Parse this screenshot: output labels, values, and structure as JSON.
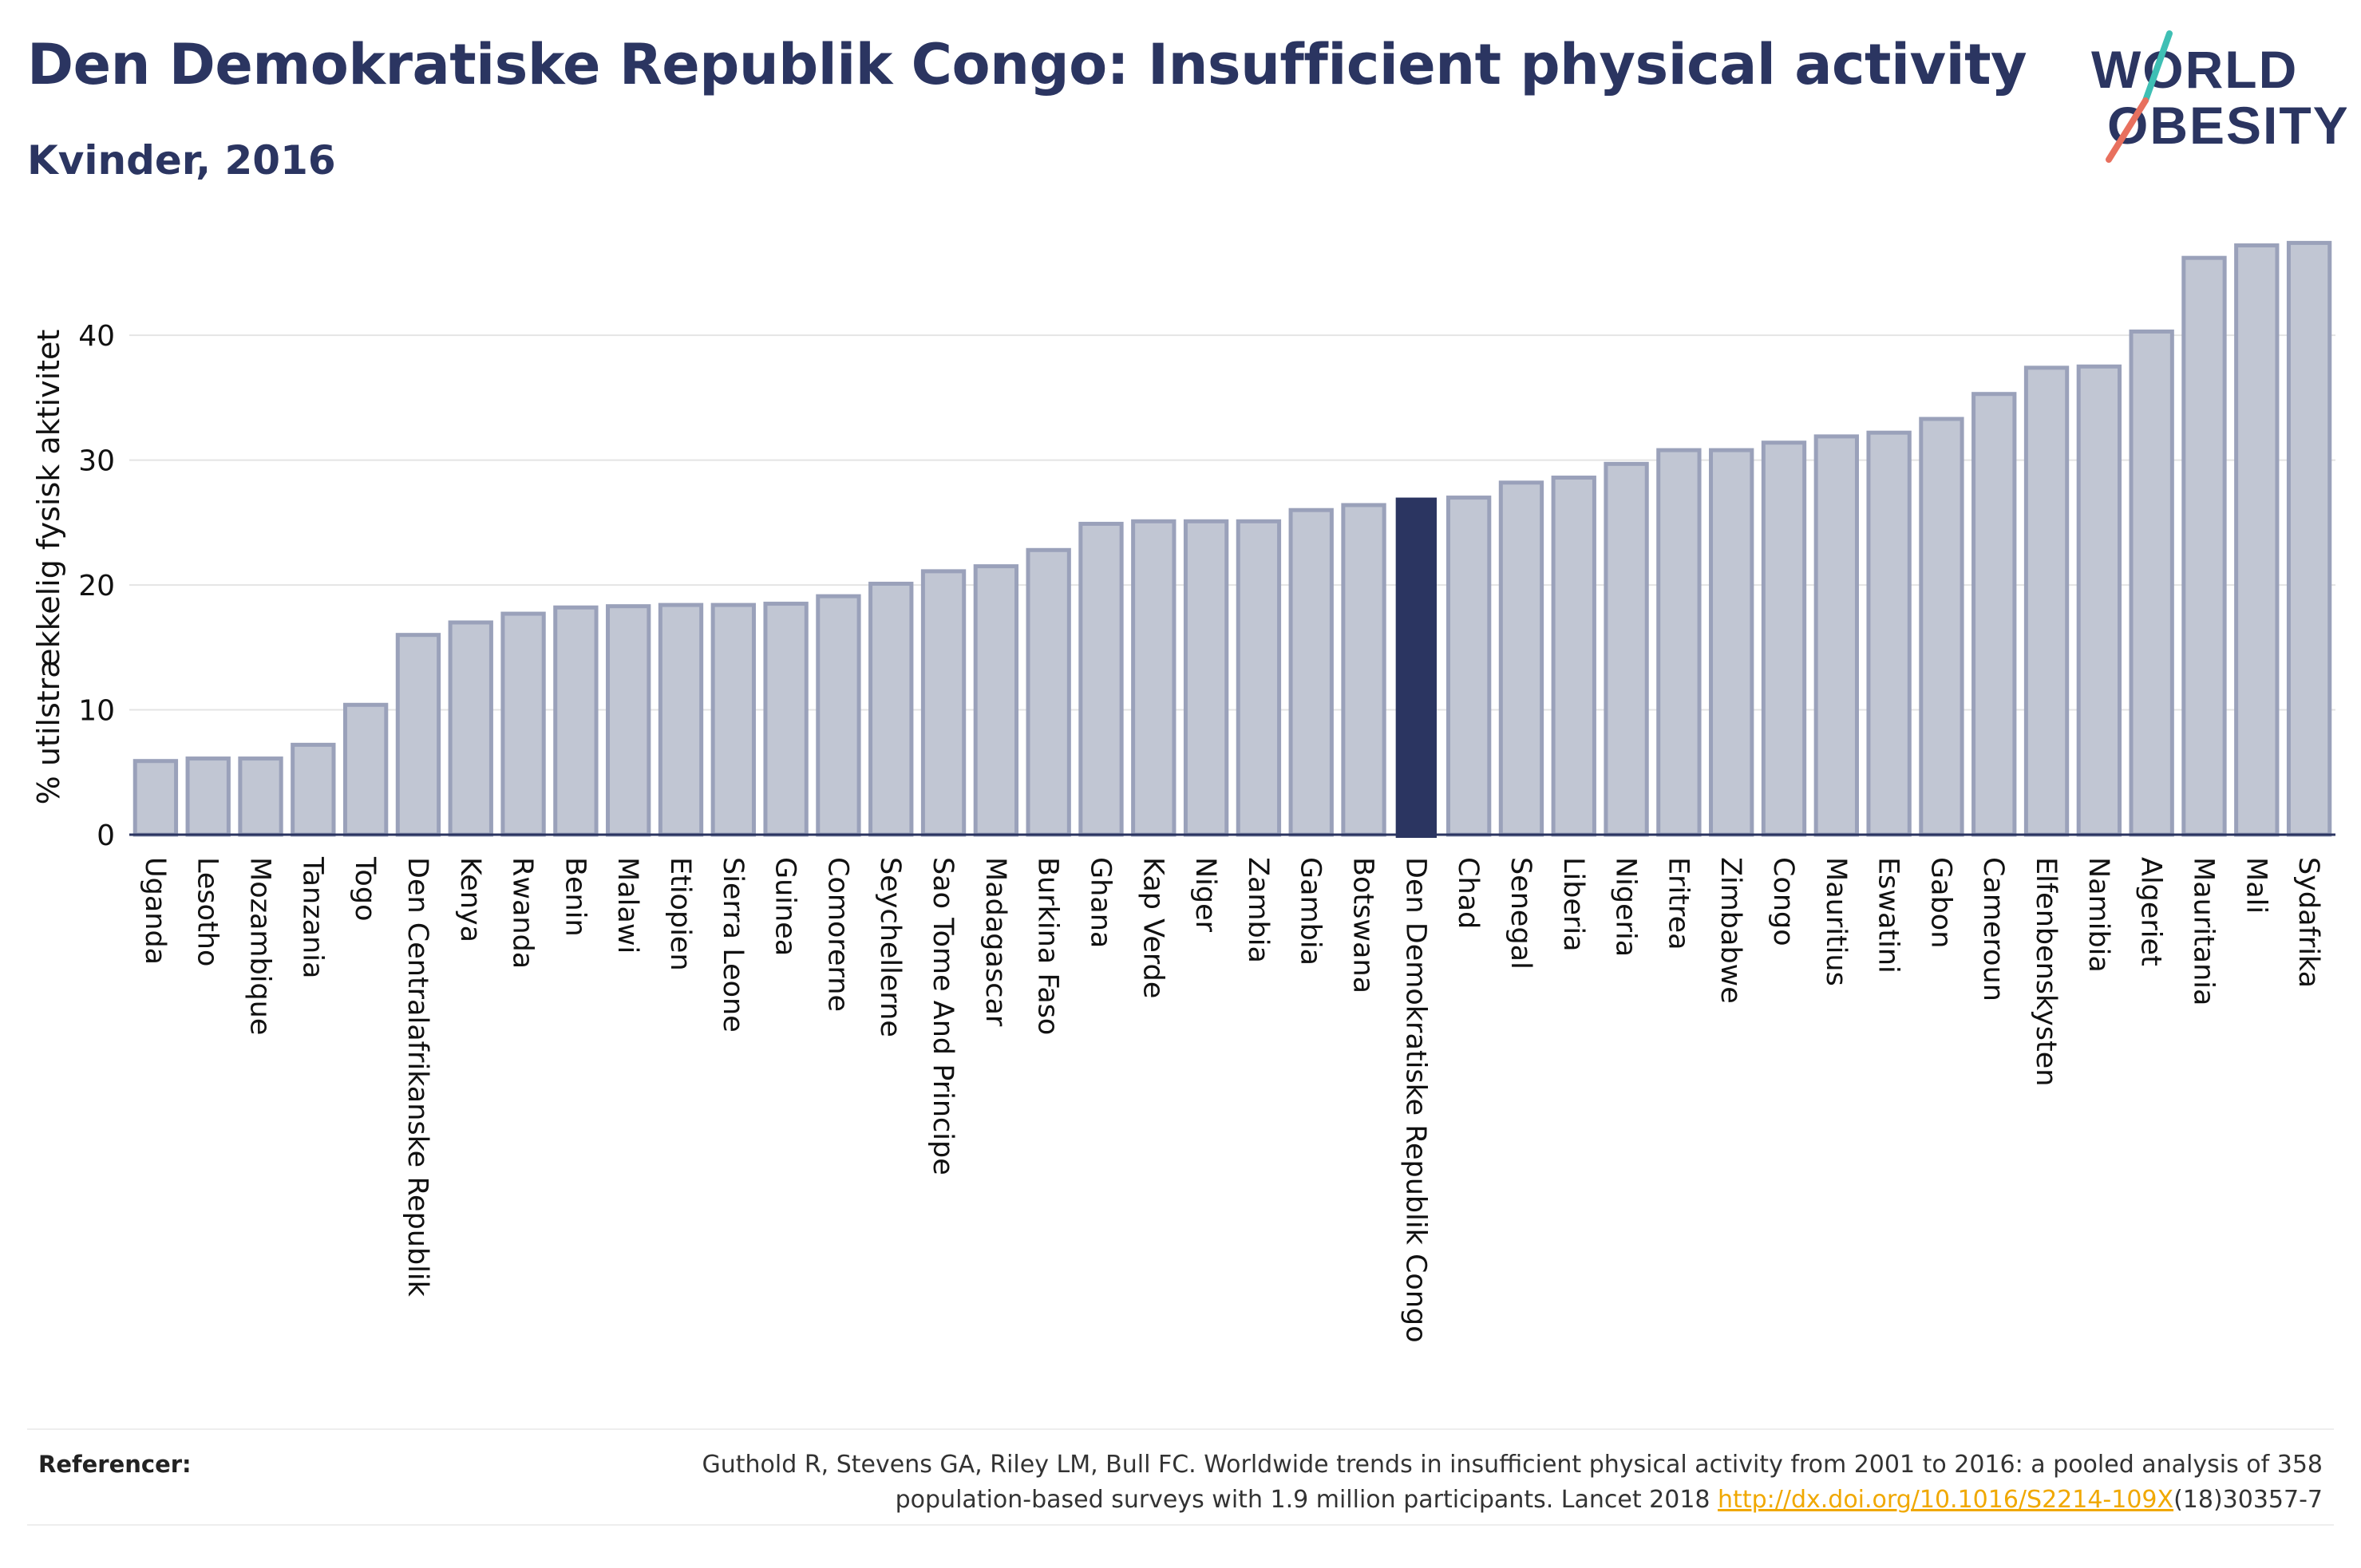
{
  "header": {
    "title": "Den Demokratiske Republik Congo: Insufficient physical activity",
    "subtitle": "Kvinder, 2016"
  },
  "logo": {
    "line1": "WORLD",
    "line2": "OBESITY"
  },
  "references": {
    "label": "Referencer:",
    "text_line1": "Guthold R, Stevens GA, Riley LM, Bull FC. Worldwide trends in insufficient physical activity from 2001 to 2016: a pooled analysis of 358",
    "text_line2_before": "population-based surveys with 1.9 million participants. Lancet 2018 ",
    "link_text": "http://dx.doi.org/10.1016/S2214-109X",
    "text_line2_after": "(18)30357-7"
  },
  "colors": {
    "bar": "#c1c6d3",
    "bar_border": "#9aa1ba",
    "highlight": "#2b3561",
    "axis_text": "#111111",
    "grid": "#e4e4e4",
    "link": "#f0a800"
  },
  "chart_data": {
    "type": "bar",
    "ylabel": "% utilstrækkelig fysisk aktivitet",
    "ylim": [
      0,
      48
    ],
    "yticks": [
      0,
      10,
      20,
      30,
      40
    ],
    "grid": true,
    "highlight": "Den Demokratiske Republik Congo",
    "categories": [
      "Uganda",
      "Lesotho",
      "Mozambique",
      "Tanzania",
      "Togo",
      "Den Centralafrikanske Republik",
      "Kenya",
      "Rwanda",
      "Benin",
      "Malawi",
      "Etiopien",
      "Sierra Leone",
      "Guinea",
      "Comorerne",
      "Seychellerne",
      "Sao Tome And Principe",
      "Madagascar",
      "Burkina Faso",
      "Ghana",
      "Kap Verde",
      "Niger",
      "Zambia",
      "Gambia",
      "Botswana",
      "Den Demokratiske Republik Congo",
      "Chad",
      "Senegal",
      "Liberia",
      "Nigeria",
      "Eritrea",
      "Zimbabwe",
      "Congo",
      "Mauritius",
      "Eswatini",
      "Gabon",
      "Cameroun",
      "Elfenbenskysten",
      "Namibia",
      "Algeriet",
      "Mauritania",
      "Mali",
      "Sydafrika"
    ],
    "values": [
      5.9,
      6.1,
      6.1,
      7.2,
      10.4,
      16.0,
      17.0,
      17.7,
      18.2,
      18.3,
      18.4,
      18.4,
      18.5,
      19.1,
      20.1,
      21.1,
      21.5,
      22.8,
      24.9,
      25.1,
      25.1,
      25.1,
      26.0,
      26.4,
      27.0,
      27.0,
      28.2,
      28.6,
      29.7,
      30.8,
      30.8,
      31.4,
      31.9,
      32.2,
      33.3,
      35.3,
      37.4,
      37.5,
      40.3,
      46.2,
      47.2,
      47.4
    ]
  }
}
